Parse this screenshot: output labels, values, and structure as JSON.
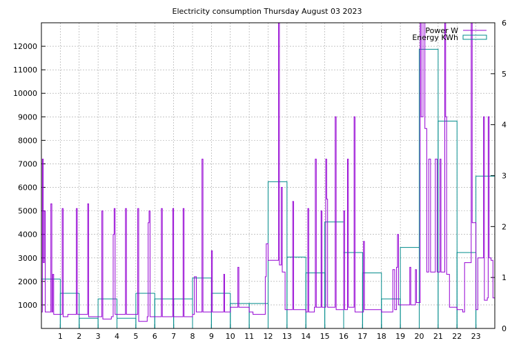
{
  "chart_data": {
    "type": "line",
    "title": "Electricity consumption Thursday August 03 2023",
    "xlabel": "",
    "ylabel": "",
    "grid": true,
    "legend_position": "top-right",
    "x_range": [
      0,
      24
    ],
    "x_ticks": [
      1,
      2,
      3,
      4,
      5,
      6,
      7,
      8,
      9,
      10,
      11,
      12,
      13,
      14,
      15,
      16,
      17,
      18,
      19,
      20,
      21,
      22,
      23
    ],
    "y_left_range": [
      0,
      13000
    ],
    "y_left_ticks": [
      1000,
      2000,
      3000,
      4000,
      5000,
      6000,
      7000,
      8000,
      9000,
      10000,
      11000,
      12000
    ],
    "y_right_range": [
      0,
      6
    ],
    "y_right_ticks": [
      0,
      1,
      2,
      3,
      4,
      5,
      6
    ],
    "series": [
      {
        "name": "Power W",
        "axis": "left",
        "color": "#9400d3",
        "points": [
          [
            0.0,
            700
          ],
          [
            0.05,
            7200
          ],
          [
            0.1,
            2800
          ],
          [
            0.15,
            5000
          ],
          [
            0.2,
            700
          ],
          [
            0.45,
            700
          ],
          [
            0.5,
            5300
          ],
          [
            0.55,
            700
          ],
          [
            0.6,
            2300
          ],
          [
            0.65,
            600
          ],
          [
            1.0,
            600
          ],
          [
            1.1,
            5100
          ],
          [
            1.15,
            500
          ],
          [
            1.4,
            600
          ],
          [
            1.8,
            600
          ],
          [
            1.85,
            5100
          ],
          [
            1.9,
            600
          ],
          [
            2.4,
            600
          ],
          [
            2.45,
            5300
          ],
          [
            2.5,
            500
          ],
          [
            3.15,
            500
          ],
          [
            3.2,
            5000
          ],
          [
            3.25,
            400
          ],
          [
            3.7,
            500
          ],
          [
            3.8,
            4000
          ],
          [
            3.85,
            5100
          ],
          [
            3.9,
            600
          ],
          [
            4.4,
            600
          ],
          [
            4.45,
            5100
          ],
          [
            4.5,
            600
          ],
          [
            5.05,
            600
          ],
          [
            5.1,
            5100
          ],
          [
            5.15,
            300
          ],
          [
            5.6,
            500
          ],
          [
            5.65,
            4500
          ],
          [
            5.7,
            5000
          ],
          [
            5.75,
            500
          ],
          [
            6.3,
            500
          ],
          [
            6.35,
            5100
          ],
          [
            6.4,
            500
          ],
          [
            6.9,
            500
          ],
          [
            6.95,
            5100
          ],
          [
            7.0,
            500
          ],
          [
            7.45,
            500
          ],
          [
            7.5,
            5100
          ],
          [
            7.55,
            500
          ],
          [
            8.0,
            600
          ],
          [
            8.1,
            2200
          ],
          [
            8.2,
            700
          ],
          [
            8.45,
            700
          ],
          [
            8.5,
            7200
          ],
          [
            8.55,
            700
          ],
          [
            8.95,
            700
          ],
          [
            9.0,
            3300
          ],
          [
            9.05,
            700
          ],
          [
            9.6,
            700
          ],
          [
            9.65,
            2300
          ],
          [
            9.7,
            700
          ],
          [
            10.0,
            900
          ],
          [
            10.35,
            900
          ],
          [
            10.4,
            2600
          ],
          [
            10.45,
            900
          ],
          [
            11.0,
            700
          ],
          [
            11.2,
            600
          ],
          [
            11.8,
            600
          ],
          [
            11.85,
            2200
          ],
          [
            11.9,
            3600
          ],
          [
            12.0,
            2900
          ],
          [
            12.5,
            2900
          ],
          [
            12.55,
            13000
          ],
          [
            12.6,
            2700
          ],
          [
            12.7,
            6000
          ],
          [
            12.75,
            2400
          ],
          [
            12.9,
            800
          ],
          [
            13.2,
            800
          ],
          [
            13.3,
            5400
          ],
          [
            13.35,
            800
          ],
          [
            14.0,
            700
          ],
          [
            14.1,
            5100
          ],
          [
            14.15,
            700
          ],
          [
            14.45,
            900
          ],
          [
            14.5,
            7200
          ],
          [
            14.55,
            900
          ],
          [
            14.75,
            900
          ],
          [
            14.8,
            5000
          ],
          [
            14.85,
            900
          ],
          [
            15.0,
            900
          ],
          [
            15.05,
            7200
          ],
          [
            15.1,
            5500
          ],
          [
            15.15,
            900
          ],
          [
            15.5,
            900
          ],
          [
            15.55,
            9000
          ],
          [
            15.6,
            800
          ],
          [
            15.9,
            800
          ],
          [
            16.0,
            5000
          ],
          [
            16.05,
            800
          ],
          [
            16.15,
            800
          ],
          [
            16.2,
            7200
          ],
          [
            16.25,
            900
          ],
          [
            16.5,
            900
          ],
          [
            16.55,
            9000
          ],
          [
            16.6,
            700
          ],
          [
            17.0,
            700
          ],
          [
            17.05,
            3700
          ],
          [
            17.1,
            800
          ],
          [
            18.0,
            700
          ],
          [
            18.4,
            700
          ],
          [
            18.6,
            2500
          ],
          [
            18.7,
            800
          ],
          [
            18.8,
            2600
          ],
          [
            18.85,
            4000
          ],
          [
            18.9,
            1000
          ],
          [
            19.4,
            1000
          ],
          [
            19.5,
            2600
          ],
          [
            19.55,
            1000
          ],
          [
            19.75,
            1000
          ],
          [
            19.8,
            2500
          ],
          [
            19.85,
            1100
          ],
          [
            20.0,
            1100
          ],
          [
            20.05,
            13000
          ],
          [
            20.1,
            9000
          ],
          [
            20.2,
            13000
          ],
          [
            20.3,
            8500
          ],
          [
            20.4,
            2400
          ],
          [
            20.5,
            7200
          ],
          [
            20.6,
            2400
          ],
          [
            20.8,
            2400
          ],
          [
            20.85,
            7200
          ],
          [
            20.95,
            2400
          ],
          [
            21.05,
            2400
          ],
          [
            21.1,
            7200
          ],
          [
            21.15,
            2400
          ],
          [
            21.3,
            2400
          ],
          [
            21.35,
            13000
          ],
          [
            21.4,
            9000
          ],
          [
            21.45,
            2300
          ],
          [
            21.6,
            900
          ],
          [
            22.0,
            800
          ],
          [
            22.3,
            700
          ],
          [
            22.4,
            2800
          ],
          [
            22.7,
            2800
          ],
          [
            22.75,
            13000
          ],
          [
            22.8,
            4500
          ],
          [
            23.0,
            800
          ],
          [
            23.1,
            3000
          ],
          [
            23.3,
            3000
          ],
          [
            23.4,
            9000
          ],
          [
            23.45,
            1200
          ],
          [
            23.6,
            1300
          ],
          [
            23.65,
            9000
          ],
          [
            23.7,
            3000
          ],
          [
            23.8,
            2900
          ],
          [
            23.9,
            1300
          ]
        ]
      },
      {
        "name": "Energy KWh",
        "axis": "right",
        "color": "#008b8b",
        "style": "steps",
        "x": [
          0,
          1,
          2,
          3,
          4,
          5,
          6,
          7,
          8,
          9,
          10,
          11,
          12,
          13,
          14,
          15,
          16,
          17,
          18,
          19,
          20,
          21,
          22,
          23
        ],
        "values": [
          0.97,
          0.69,
          0.2,
          0.58,
          0.2,
          0.69,
          0.58,
          0.58,
          0.99,
          0.69,
          0.49,
          0.49,
          2.88,
          1.4,
          1.09,
          2.09,
          1.49,
          1.09,
          0.58,
          1.59,
          5.48,
          4.07,
          1.49,
          2.99
        ]
      }
    ]
  }
}
